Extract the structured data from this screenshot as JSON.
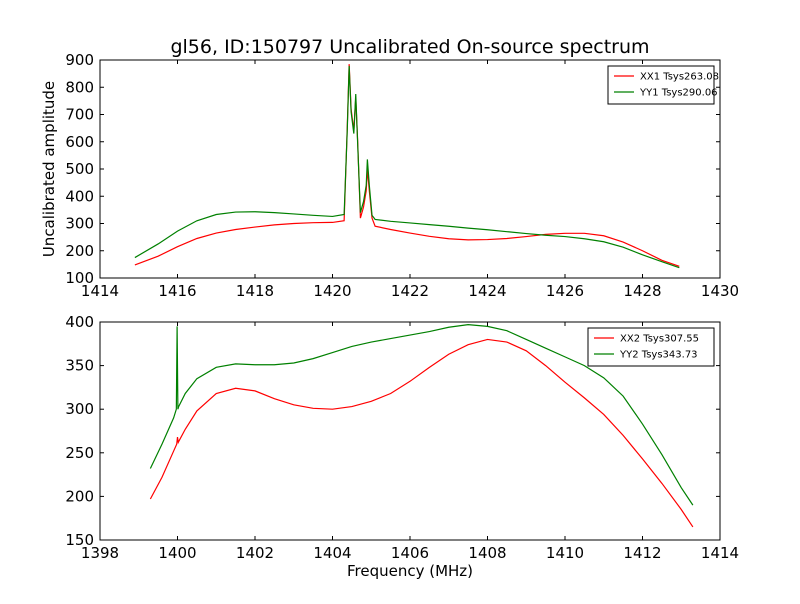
{
  "chart_data": {
    "type": "line",
    "title": "gl56, ID:150797 Uncalibrated On-source spectrum",
    "ylabel": "Uncalibrated amplitude",
    "xlabel": "Frequency (MHz)",
    "colors": {
      "xx": "#ff0000",
      "yy": "#008000",
      "frame": "#000000",
      "background": "#ffffff"
    },
    "panels": [
      {
        "xlim": [
          1414,
          1430
        ],
        "ylim": [
          100,
          900
        ],
        "xticks": [
          1414,
          1416,
          1418,
          1420,
          1422,
          1424,
          1426,
          1428,
          1430
        ],
        "yticks": [
          100,
          200,
          300,
          400,
          500,
          600,
          700,
          800,
          900
        ],
        "xtick_labels": [
          "1414",
          "1416",
          "1418",
          "1420",
          "1422",
          "1424",
          "1426",
          "1428",
          "1430"
        ],
        "ytick_labels": [
          "100",
          "200",
          "300",
          "400",
          "500",
          "600",
          "700",
          "800",
          "900"
        ],
        "legend_position": "top-right",
        "series": [
          {
            "name": "XX1 Tsys263.08",
            "color": "#ff0000",
            "x": [
              1414.9,
              1415.5,
              1416.0,
              1416.5,
              1417.0,
              1417.5,
              1418.0,
              1418.5,
              1419.0,
              1419.5,
              1420.0,
              1420.3,
              1420.38,
              1420.43,
              1420.48,
              1420.55,
              1420.6,
              1420.65,
              1420.72,
              1420.8,
              1420.87,
              1420.9,
              1420.95,
              1421.02,
              1421.1,
              1421.5,
              1422.0,
              1422.5,
              1423.0,
              1423.5,
              1424.0,
              1424.5,
              1425.0,
              1425.5,
              1426.0,
              1426.5,
              1427.0,
              1427.5,
              1428.0,
              1428.5,
              1428.95
            ],
            "y": [
              148,
              180,
              215,
              245,
              265,
              278,
              287,
              295,
              300,
              303,
              304,
              310,
              650,
              885,
              720,
              640,
              760,
              600,
              320,
              360,
              420,
              500,
              420,
              320,
              290,
              278,
              265,
              253,
              244,
              240,
              241,
              245,
              252,
              260,
              264,
              264,
              255,
              232,
              200,
              165,
              143
            ]
          },
          {
            "name": "YY1 Tsys290.06",
            "color": "#008000",
            "x": [
              1414.9,
              1415.5,
              1416.0,
              1416.5,
              1417.0,
              1417.5,
              1418.0,
              1418.5,
              1419.0,
              1419.5,
              1420.0,
              1420.3,
              1420.38,
              1420.43,
              1420.48,
              1420.55,
              1420.6,
              1420.65,
              1420.72,
              1420.8,
              1420.87,
              1420.9,
              1420.95,
              1421.02,
              1421.1,
              1421.5,
              1422.0,
              1422.5,
              1423.0,
              1423.5,
              1424.0,
              1424.5,
              1425.0,
              1425.5,
              1426.0,
              1426.5,
              1427.0,
              1427.5,
              1428.0,
              1428.5,
              1428.95
            ],
            "y": [
              175,
              225,
              272,
              310,
              333,
              342,
              343,
              340,
              335,
              330,
              326,
              333,
              640,
              878,
              710,
              630,
              775,
              590,
              340,
              380,
              440,
              535,
              440,
              330,
              315,
              308,
              302,
              296,
              290,
              283,
              277,
              270,
              263,
              257,
              252,
              244,
              233,
              213,
              185,
              160,
              138
            ]
          }
        ]
      },
      {
        "xlim": [
          1398,
          1414
        ],
        "ylim": [
          150,
          400
        ],
        "xticks": [
          1398,
          1400,
          1402,
          1404,
          1406,
          1408,
          1410,
          1412,
          1414
        ],
        "yticks": [
          150,
          200,
          250,
          300,
          350,
          400
        ],
        "xtick_labels": [
          "1398",
          "1400",
          "1402",
          "1404",
          "1406",
          "1408",
          "1410",
          "1412",
          "1414"
        ],
        "ytick_labels": [
          "150",
          "200",
          "250",
          "300",
          "350",
          "400"
        ],
        "legend_position": "top-right",
        "series": [
          {
            "name": "XX2 Tsys307.55",
            "color": "#ff0000",
            "x": [
              1399.3,
              1399.6,
              1399.9,
              1399.98,
              1400.0,
              1400.02,
              1400.2,
              1400.5,
              1401.0,
              1401.5,
              1402.0,
              1402.5,
              1403.0,
              1403.5,
              1404.0,
              1404.5,
              1405.0,
              1405.5,
              1406.0,
              1406.5,
              1407.0,
              1407.5,
              1408.0,
              1408.5,
              1409.0,
              1409.5,
              1410.0,
              1410.5,
              1411.0,
              1411.5,
              1412.0,
              1412.5,
              1413.0,
              1413.3
            ],
            "y": [
              197,
              222,
              252,
              260,
              268,
              262,
              277,
              298,
              318,
              324,
              321,
              312,
              305,
              301,
              300,
              303,
              309,
              318,
              332,
              348,
              363,
              374,
              380,
              377,
              367,
              350,
              331,
              313,
              294,
              270,
              243,
              215,
              185,
              165
            ]
          },
          {
            "name": "YY2 Tsys343.73",
            "color": "#008000",
            "x": [
              1399.3,
              1399.6,
              1399.9,
              1399.97,
              1399.99,
              1400.01,
              1400.03,
              1400.2,
              1400.5,
              1401.0,
              1401.5,
              1402.0,
              1402.5,
              1403.0,
              1403.5,
              1404.0,
              1404.5,
              1405.0,
              1405.5,
              1406.0,
              1406.5,
              1407.0,
              1407.5,
              1408.0,
              1408.5,
              1409.0,
              1409.5,
              1410.0,
              1410.5,
              1411.0,
              1411.5,
              1412.0,
              1412.5,
              1413.0,
              1413.3
            ],
            "y": [
              232,
              260,
              290,
              300,
              395,
              300,
              303,
              318,
              335,
              348,
              352,
              351,
              351,
              353,
              358,
              365,
              372,
              377,
              381,
              385,
              389,
              394,
              397,
              395,
              390,
              380,
              370,
              360,
              350,
              336,
              315,
              283,
              248,
              210,
              190
            ]
          }
        ]
      }
    ]
  }
}
